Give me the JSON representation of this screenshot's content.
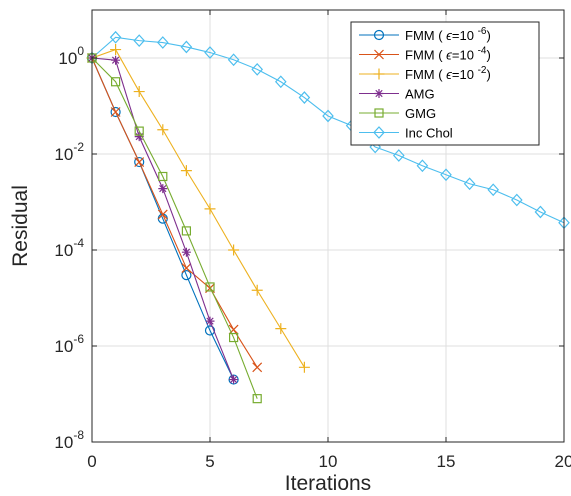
{
  "chart_data": {
    "type": "line",
    "xlabel": "Iterations",
    "ylabel": "Residual",
    "xlim": [
      0,
      20
    ],
    "ylim": [
      1e-08,
      10
    ],
    "y_scale": "log",
    "grid": true,
    "legend_position": "top-right",
    "x_ticks": [
      {
        "value": 0,
        "label": "0"
      },
      {
        "value": 5,
        "label": "5"
      },
      {
        "value": 10,
        "label": "10"
      },
      {
        "value": 15,
        "label": "15"
      },
      {
        "value": 20,
        "label": "20"
      }
    ],
    "y_ticks": [
      {
        "value": 1,
        "base": "10",
        "exp": "0"
      },
      {
        "value": 0.01,
        "base": "10",
        "exp": "-2"
      },
      {
        "value": 0.0001,
        "base": "10",
        "exp": "-4"
      },
      {
        "value": 1e-06,
        "base": "10",
        "exp": "-6"
      },
      {
        "value": 1e-08,
        "base": "10",
        "exp": "-8"
      }
    ],
    "series": [
      {
        "name": "FMM ( ϵ=10 -6)",
        "legend_prefix": "FMM (",
        "legend_eps": "ϵ",
        "legend_mid": "=10",
        "legend_exp": "-6",
        "legend_suffix": ")",
        "color": "#0072BD",
        "marker": "circle",
        "x": [
          0,
          1,
          2,
          3,
          4,
          5,
          6
        ],
        "y": [
          1,
          0.075,
          0.0068,
          0.00045,
          3e-05,
          2.1e-06,
          2e-07
        ]
      },
      {
        "name": "FMM ( ϵ=10 -4)",
        "legend_prefix": "FMM (",
        "legend_eps": "ϵ",
        "legend_mid": "=10",
        "legend_exp": "-4",
        "legend_suffix": ")",
        "color": "#D95319",
        "marker": "x",
        "x": [
          0,
          1,
          2,
          3,
          4,
          5,
          6,
          7
        ],
        "y": [
          1,
          0.075,
          0.0068,
          0.00055,
          4.2e-05,
          1.6e-05,
          2.2e-06,
          3.6e-07
        ]
      },
      {
        "name": "FMM ( ϵ=10 -2)",
        "legend_prefix": "FMM (",
        "legend_eps": "ϵ",
        "legend_mid": "=10",
        "legend_exp": "-2",
        "legend_suffix": ")",
        "color": "#EDB120",
        "marker": "plus",
        "x": [
          0,
          1,
          2,
          3,
          4,
          5,
          6,
          7,
          8,
          9
        ],
        "y": [
          1,
          1.5,
          0.2,
          0.032,
          0.0045,
          0.00072,
          0.0001,
          1.45e-05,
          2.3e-06,
          3.6e-07
        ]
      },
      {
        "name": "AMG",
        "color": "#7E2F8E",
        "marker": "asterisk",
        "x": [
          0,
          1,
          2,
          3,
          4,
          5,
          6
        ],
        "y": [
          1,
          0.9,
          0.023,
          0.0019,
          9e-05,
          3.3e-06,
          2e-07
        ]
      },
      {
        "name": "GMG",
        "color": "#77AC30",
        "marker": "square",
        "x": [
          0,
          1,
          2,
          3,
          4,
          5,
          6,
          7
        ],
        "y": [
          1,
          0.32,
          0.03,
          0.0034,
          0.00025,
          1.7e-05,
          1.5e-06,
          8e-08
        ]
      },
      {
        "name": "Inc Chol",
        "color": "#4DBEEE",
        "marker": "diamond",
        "x": [
          0,
          1,
          2,
          3,
          4,
          5,
          6,
          7,
          8,
          9,
          10,
          11,
          12,
          13,
          14,
          15,
          16,
          17,
          18,
          19,
          20
        ],
        "y": [
          1,
          2.7,
          2.3,
          2.1,
          1.7,
          1.3,
          0.92,
          0.58,
          0.32,
          0.15,
          0.062,
          0.039,
          0.014,
          0.0093,
          0.0057,
          0.0037,
          0.0024,
          0.0018,
          0.0011,
          0.00062,
          0.00037
        ]
      }
    ]
  }
}
